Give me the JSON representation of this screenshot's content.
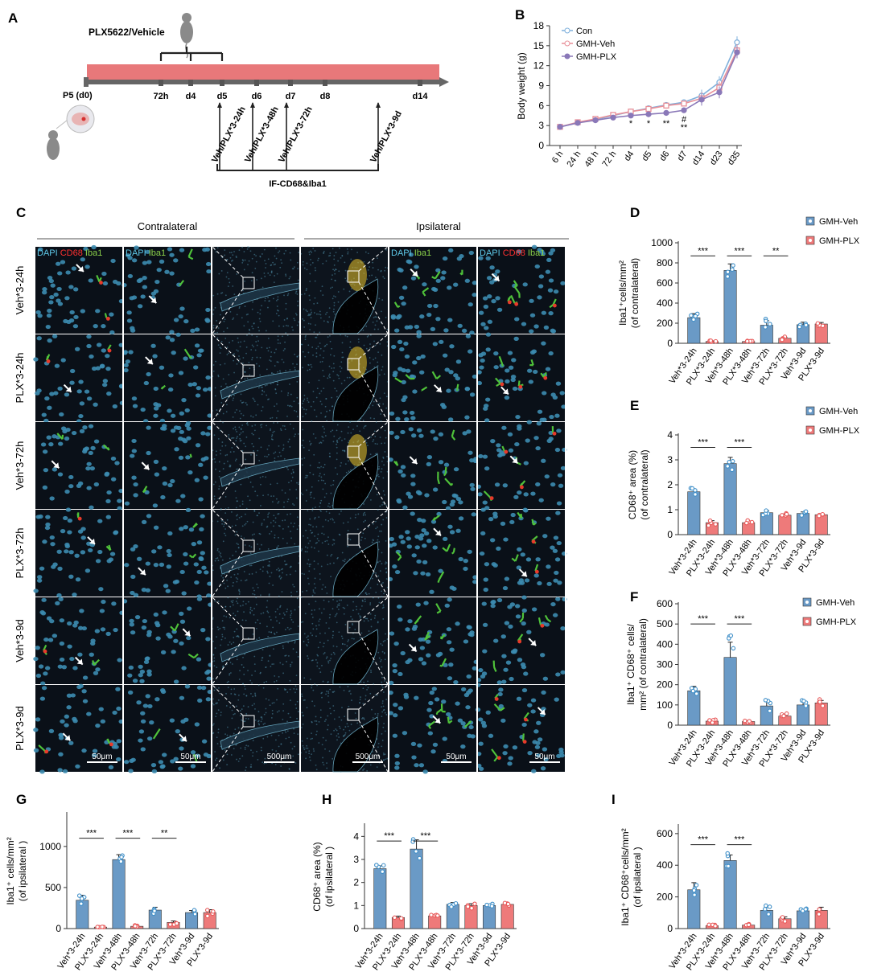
{
  "panel_letters": {
    "A": "A",
    "B": "B",
    "C": "C",
    "D": "D",
    "E": "E",
    "F": "F",
    "G": "G",
    "H": "H",
    "I": "I"
  },
  "timeline": {
    "drug_label": "PLX5622/Vehicle",
    "start_label": "P5 (d0)",
    "ticks": [
      "72h",
      "d4",
      "d5",
      "d6",
      "d7",
      "d8",
      "d14"
    ],
    "sample_labels": [
      "Veh/PLX*3-24h",
      "Veh/PLX*3-48h",
      "Veh/PLX*3-72h",
      "Veh/PLX*3-9d"
    ],
    "if_label": "IF-CD68&Iba1",
    "colors": {
      "bar": "#e8787a",
      "axis": "#666666",
      "brace": "#333333"
    }
  },
  "microscopy": {
    "header_contra": "Contralateral",
    "header_ipsi": "Ipsilateral",
    "row_labels": [
      "Veh*3-24h",
      "PLX*3-24h",
      "Veh*3-72h",
      "PLX*3-72h",
      "Veh*3-9d",
      "PLX*3-9d"
    ],
    "col_stains": [
      [
        {
          "t": "DAPI ",
          "c": "#5ec8e8"
        },
        {
          "t": "CD68 ",
          "c": "#ff3030"
        },
        {
          "t": "Iba1",
          "c": "#8bd14a"
        }
      ],
      [
        {
          "t": "DAPI ",
          "c": "#5ec8e8"
        },
        {
          "t": "Iba1",
          "c": "#8bd14a"
        }
      ],
      [],
      [],
      [
        {
          "t": "DAPI ",
          "c": "#5ec8e8"
        },
        {
          "t": "Iba1",
          "c": "#8bd14a"
        }
      ],
      [
        {
          "t": "DAPI ",
          "c": "#5ec8e8"
        },
        {
          "t": "CD68 ",
          "c": "#ff3030"
        },
        {
          "t": "Iba1",
          "c": "#8bd14a"
        }
      ]
    ],
    "scale_labels": [
      "50μm",
      "50μm",
      "500μm",
      "500μm",
      "50μm",
      "50μm"
    ],
    "colors": {
      "background": "#0a1018",
      "nuclei": "#3c8cb0",
      "iba1": "#4fc23a",
      "cd68": "#e83a2a"
    }
  },
  "colors": {
    "veh": "#6a9ac6",
    "plx": "#ee7a7a",
    "veh_dot": "#3f8fc8",
    "plx_dot": "#e85a5a"
  },
  "chart_data": [
    {
      "id": "B",
      "type": "line",
      "ylabel": "Body weight (g)",
      "ylim": [
        0,
        18
      ],
      "yticks": [
        0,
        3,
        6,
        9,
        12,
        15,
        18
      ],
      "x": [
        "6 h",
        "24 h",
        "48 h",
        "72 h",
        "d4",
        "d5",
        "d6",
        "d7",
        "d14",
        "d23",
        "d35"
      ],
      "series": [
        {
          "name": "Con",
          "color": "#7fb0dc",
          "values": [
            2.8,
            3.4,
            3.9,
            4.5,
            5.1,
            5.6,
            6.1,
            6.5,
            7.5,
            9.5,
            15.5
          ]
        },
        {
          "name": "GMH-Veh",
          "color": "#e88f98",
          "values": [
            2.8,
            3.5,
            4.0,
            4.6,
            5.1,
            5.5,
            6.0,
            6.3,
            7.1,
            8.7,
            14.3
          ]
        },
        {
          "name": "GMH-PLX",
          "color": "#8a78b8",
          "values": [
            2.8,
            3.4,
            3.8,
            4.2,
            4.5,
            4.7,
            4.9,
            5.3,
            6.9,
            8.0,
            14.0
          ]
        }
      ],
      "annotations": [
        {
          "x": "d4",
          "text": "*"
        },
        {
          "x": "d5",
          "text": "*"
        },
        {
          "x": "d6",
          "text": "**"
        },
        {
          "x": "d7",
          "text": "#"
        },
        {
          "x": "d7",
          "text": "**"
        }
      ]
    },
    {
      "id": "D",
      "type": "bar",
      "ylabel": "Iba1⁺cells/mm²",
      "ylabel2": "(of contralateral)",
      "ylim": [
        0,
        1000
      ],
      "yticks": [
        0,
        200,
        400,
        600,
        800,
        1000
      ],
      "categories": [
        "Veh*3-24h",
        "PLX*3-24h",
        "Veh*3-48h",
        "PLX*3-48h",
        "Veh*3-72h",
        "PLX*3-72h",
        "Veh*3-9d",
        "PLX*3-9d"
      ],
      "values": [
        255,
        18,
        725,
        18,
        180,
        50,
        185,
        192
      ],
      "errors": [
        40,
        6,
        65,
        6,
        45,
        10,
        25,
        15
      ],
      "legend": [
        "GMH-Veh",
        "GMH-PLX"
      ],
      "sig": [
        {
          "from": 0,
          "to": 1,
          "text": "***",
          "y": 870
        },
        {
          "from": 2,
          "to": 3,
          "text": "***",
          "y": 870
        },
        {
          "from": 4,
          "to": 5,
          "text": "**",
          "y": 870
        }
      ]
    },
    {
      "id": "E",
      "type": "bar",
      "ylabel": "CD68⁺ area (%)",
      "ylabel2": "(of contralateral)",
      "ylim": [
        0,
        4
      ],
      "yticks": [
        0,
        1,
        2,
        3,
        4
      ],
      "categories": [
        "Veh*3-24h",
        "PLX*3-24h",
        "Veh*3-48h",
        "PLX*3-48h",
        "Veh*3-72h",
        "PLX*3-72h",
        "Veh*3-9d",
        "PLX*3-9d"
      ],
      "values": [
        1.72,
        0.48,
        2.85,
        0.48,
        0.88,
        0.78,
        0.85,
        0.8
      ],
      "errors": [
        0.1,
        0.08,
        0.25,
        0.06,
        0.08,
        0.05,
        0.06,
        0.04
      ],
      "legend": [
        "GMH-Veh",
        "GMH-PLX"
      ],
      "sig": [
        {
          "from": 0,
          "to": 1,
          "text": "***",
          "y": 3.5
        },
        {
          "from": 2,
          "to": 3,
          "text": "***",
          "y": 3.5
        }
      ]
    },
    {
      "id": "F",
      "type": "bar",
      "ylabel": "Iba1⁺ CD68⁺ cells/",
      "ylabel2": "mm² (of contralateral)",
      "ylim": [
        0,
        600
      ],
      "yticks": [
        0,
        100,
        200,
        300,
        400,
        500,
        600
      ],
      "categories": [
        "Veh*3-24h",
        "PLX*3-24h",
        "Veh*3-48h",
        "PLX*3-48h",
        "Veh*3-72h",
        "PLX*3-72h",
        "Veh*3-9d",
        "PLX*3-9d"
      ],
      "values": [
        170,
        20,
        335,
        18,
        95,
        45,
        100,
        110
      ],
      "errors": [
        22,
        6,
        75,
        5,
        22,
        10,
        15,
        12
      ],
      "legend": [
        "GMH-Veh",
        "GMH-PLX"
      ],
      "sig": [
        {
          "from": 0,
          "to": 1,
          "text": "***",
          "y": 500
        },
        {
          "from": 2,
          "to": 3,
          "text": "***",
          "y": 500
        }
      ]
    },
    {
      "id": "G",
      "type": "bar",
      "ylabel": "Iba1⁺ cells/mm²",
      "ylabel2": "(of ipsilateral )",
      "ylim": [
        0,
        1400
      ],
      "yticks": [
        0,
        500,
        1000
      ],
      "categories": [
        "Veh*3-24h",
        "PLX*3-24h",
        "Veh*3-48h",
        "PLX*3-48h",
        "Veh*3-72h",
        "PLX*3-72h",
        "Veh*3-9d",
        "PLX*3-9d"
      ],
      "values": [
        345,
        18,
        840,
        28,
        225,
        75,
        195,
        195
      ],
      "errors": [
        60,
        5,
        60,
        8,
        35,
        18,
        25,
        35
      ],
      "sig": [
        {
          "from": 0,
          "to": 1,
          "text": "***",
          "y": 1100
        },
        {
          "from": 2,
          "to": 3,
          "text": "***",
          "y": 1100
        },
        {
          "from": 4,
          "to": 5,
          "text": "**",
          "y": 1100
        }
      ]
    },
    {
      "id": "H",
      "type": "bar",
      "ylabel": "CD68⁺ area (%)",
      "ylabel2": "(of ipsilateral )",
      "ylim": [
        0,
        4.5
      ],
      "yticks": [
        0,
        1,
        2,
        3,
        4
      ],
      "categories": [
        "Veh*3-24h",
        "PLX*3-24h",
        "Veh*3-48h",
        "PLX*3-48h",
        "Veh*3-72h",
        "PLX*3-72h",
        "Veh*3-9d",
        "PLX*3-9d"
      ],
      "values": [
        2.6,
        0.48,
        3.45,
        0.55,
        1.05,
        1.0,
        1.0,
        1.05
      ],
      "errors": [
        0.12,
        0.06,
        0.4,
        0.06,
        0.08,
        0.08,
        0.06,
        0.04
      ],
      "sig": [
        {
          "from": 0,
          "to": 1,
          "text": "***",
          "y": 3.8
        },
        {
          "from": 2,
          "to": 3,
          "text": "***",
          "y": 3.8
        }
      ]
    },
    {
      "id": "I",
      "type": "bar",
      "ylabel": "Iba1⁺ CD68⁺cells/mm²",
      "ylabel2": "(of ipsilateral )",
      "ylim": [
        0,
        650
      ],
      "yticks": [
        0,
        200,
        400,
        600
      ],
      "categories": [
        "Veh*3-24h",
        "PLX*3-24h",
        "Veh*3-48h",
        "PLX*3-48h",
        "Veh*3-72h",
        "PLX*3-72h",
        "Veh*3-9d",
        "PLX*3-9d"
      ],
      "values": [
        245,
        18,
        430,
        22,
        115,
        62,
        112,
        115
      ],
      "errors": [
        45,
        5,
        35,
        8,
        22,
        12,
        10,
        20
      ],
      "sig": [
        {
          "from": 0,
          "to": 1,
          "text": "***",
          "y": 530
        },
        {
          "from": 2,
          "to": 3,
          "text": "***",
          "y": 530
        }
      ]
    }
  ]
}
